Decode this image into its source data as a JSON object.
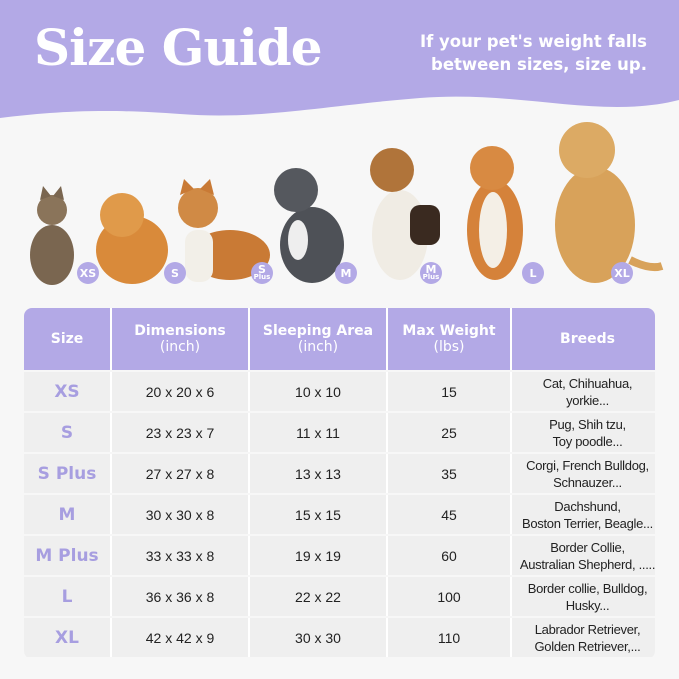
{
  "header": {
    "title": "Size Guide",
    "note_line1": "If your pet's weight falls",
    "note_line2": "between sizes, size up.",
    "accent": "#b3a9e6"
  },
  "pets": [
    {
      "badge": "XS",
      "sub": "",
      "animal": "cat"
    },
    {
      "badge": "S",
      "sub": "",
      "animal": "pomeranian"
    },
    {
      "badge": "S",
      "sub": "Plus",
      "animal": "corgi"
    },
    {
      "badge": "M",
      "sub": "",
      "animal": "french-bulldog"
    },
    {
      "badge": "M",
      "sub": "Plus",
      "animal": "beagle"
    },
    {
      "badge": "L",
      "sub": "",
      "animal": "shiba-inu"
    },
    {
      "badge": "XL",
      "sub": "",
      "animal": "golden-retriever"
    }
  ],
  "table": {
    "headers": [
      {
        "main": "Size",
        "sub": ""
      },
      {
        "main": "Dimensions",
        "sub": "(inch)"
      },
      {
        "main": "Sleeping Area",
        "sub": "(inch)"
      },
      {
        "main": "Max Weight",
        "sub": "(lbs)"
      },
      {
        "main": "Breeds",
        "sub": ""
      }
    ],
    "rows": [
      {
        "size": "XS",
        "dims": "20 x 20 x 6",
        "area": "10 x 10",
        "weight": "15",
        "breeds1": "Cat, Chihuahua,",
        "breeds2": "yorkie..."
      },
      {
        "size": "S",
        "dims": "23 x 23 x 7",
        "area": "11 x 11",
        "weight": "25",
        "breeds1": "Pug, Shih tzu,",
        "breeds2": "Toy poodle..."
      },
      {
        "size": "S Plus",
        "dims": "27 x 27 x 8",
        "area": "13 x 13",
        "weight": "35",
        "breeds1": "Corgi, French Bulldog,",
        "breeds2": "Schnauzer..."
      },
      {
        "size": "M",
        "dims": "30 x 30 x 8",
        "area": "15 x 15",
        "weight": "45",
        "breeds1": "Dachshund,",
        "breeds2": "Boston Terrier, Beagle..."
      },
      {
        "size": "M Plus",
        "dims": "33 x 33 x 8",
        "area": "19 x 19",
        "weight": "60",
        "breeds1": "Border Collie,",
        "breeds2": "Australian Shepherd, ....."
      },
      {
        "size": "L",
        "dims": "36 x 36 x 8",
        "area": "22 x 22",
        "weight": "100",
        "breeds1": "Border collie, Bulldog,",
        "breeds2": "Husky..."
      },
      {
        "size": "XL",
        "dims": "42 x 42 x 9",
        "area": "30 x 30",
        "weight": "110",
        "breeds1": "Labrador Retriever,",
        "breeds2": "Golden Retriever,..."
      }
    ]
  }
}
